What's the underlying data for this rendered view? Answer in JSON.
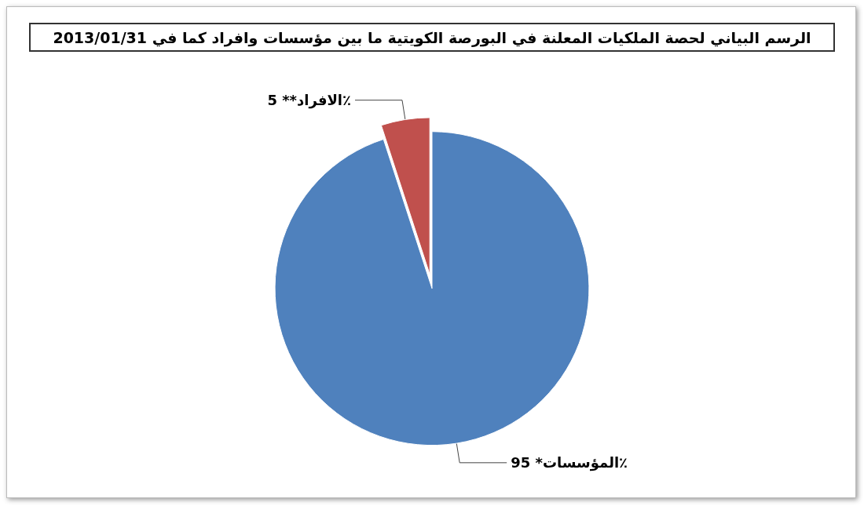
{
  "chart_data": {
    "type": "pie",
    "title": "الرسم البياني لحصة الملكيات المعلنة في البورصة الكويتية ما بين مؤسسات وافراد كما في 2013/01/31",
    "categories": [
      "المؤسسات*",
      "الافراد**"
    ],
    "values": [
      95,
      5
    ],
    "value_labels": [
      "95٪",
      "5٪"
    ],
    "colors": [
      "#4f81bd",
      "#c0504d"
    ],
    "legend": false
  }
}
